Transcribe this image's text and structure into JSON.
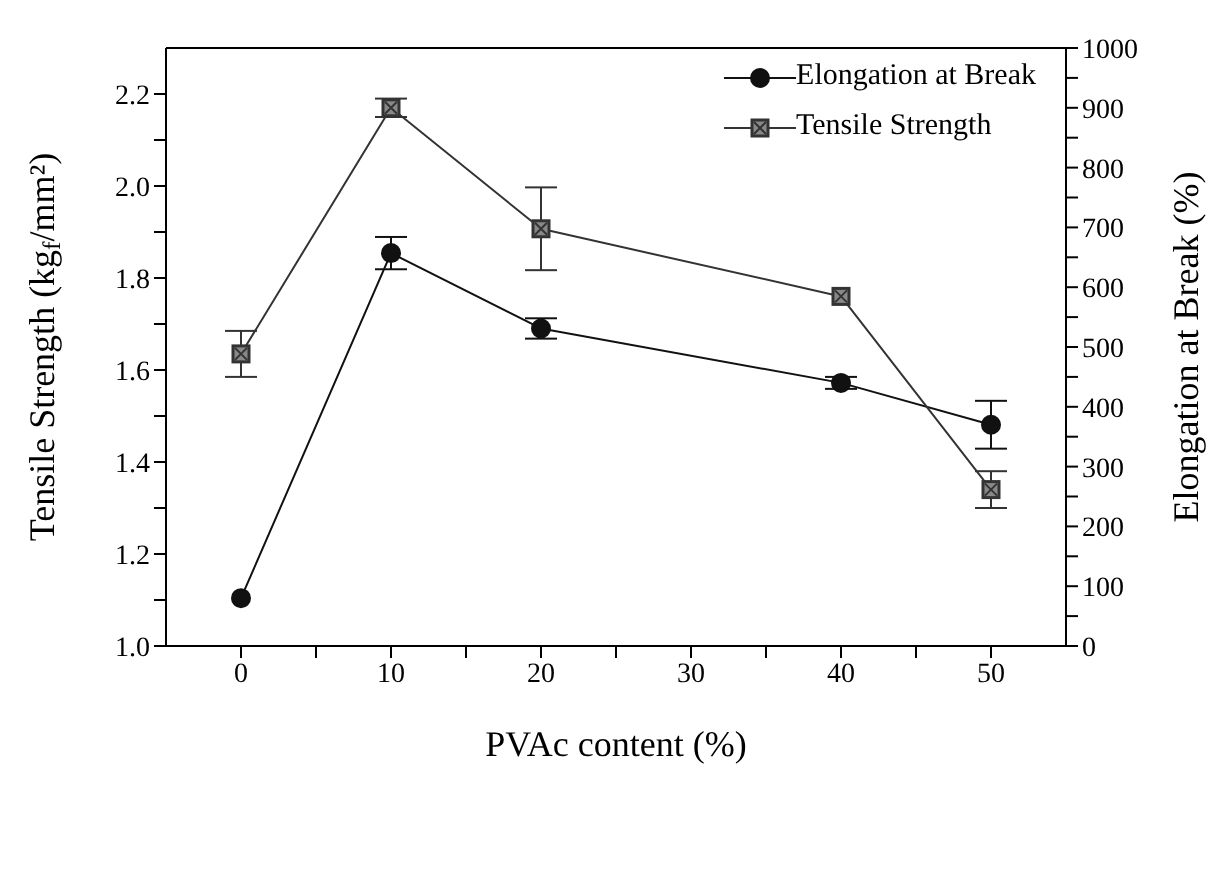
{
  "chart_data": {
    "type": "line",
    "xlabel": "PVAc content (%)",
    "ylabel": "Tensile Strength (kg$_{f}$/mm²)",
    "y2label": "Elongation at Break (%)",
    "x": [
      0,
      10,
      20,
      40,
      50
    ],
    "series": [
      {
        "name": "Elongation at Break",
        "color": "#111111",
        "axis": "y2",
        "marker": "circle",
        "values": [
          80,
          657,
          531,
          440,
          370
        ],
        "errors": [
          null,
          27,
          17,
          10,
          40
        ]
      },
      {
        "name": "Tensile Strength",
        "color": "#333333",
        "marker": "square",
        "values": [
          1.635,
          2.17,
          1.907,
          1.76,
          1.34
        ],
        "errors": [
          0.05,
          0.02,
          0.09,
          null,
          0.04
        ]
      }
    ],
    "xlim": [
      -5,
      55
    ],
    "xticks": [
      0,
      {
        "value": 5,
        "label": null
      },
      10,
      {
        "value": 15,
        "label": null
      },
      20,
      {
        "value": 25,
        "label": null
      },
      30,
      {
        "value": 35,
        "label": null
      },
      40,
      {
        "value": 45,
        "label": null
      },
      50
    ],
    "ylim": [
      1.0,
      2.3
    ],
    "yticks": [
      {
        "value": 1,
        "label": "1.0"
      },
      {
        "value": 1.1,
        "label": null
      },
      1.2,
      {
        "value": 1.3,
        "label": null
      },
      1.4,
      {
        "value": 1.5,
        "label": null
      },
      1.6,
      {
        "value": 1.7,
        "label": null
      },
      1.8,
      {
        "value": 1.9,
        "label": null
      },
      {
        "value": 2,
        "label": "2.0"
      },
      {
        "value": 2.1,
        "label": null
      },
      2.2
    ],
    "y2lim": [
      0,
      1000
    ],
    "y2ticks": [
      0,
      {
        "value": 50,
        "label": null
      },
      100,
      {
        "value": 150,
        "label": null
      },
      200,
      {
        "value": 250,
        "label": null
      },
      300,
      {
        "value": 350,
        "label": null
      },
      400,
      {
        "value": 450,
        "label": null
      },
      500,
      {
        "value": 550,
        "label": null
      },
      600,
      {
        "value": 650,
        "label": null
      },
      700,
      {
        "value": 750,
        "label": null
      },
      800,
      {
        "value": 850,
        "label": null
      },
      900,
      {
        "value": 950,
        "label": null
      },
      1000
    ],
    "legend": "top right",
    "grid": false,
    "line_style": "solid"
  }
}
